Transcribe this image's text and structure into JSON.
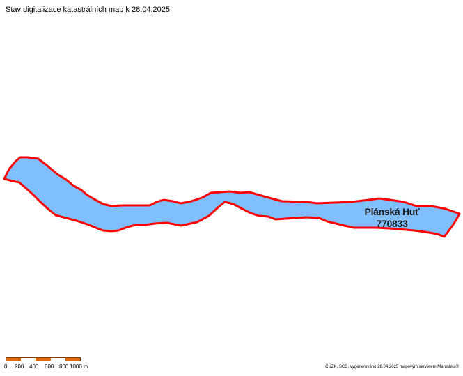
{
  "map": {
    "title": "Stav digitalizace katastrálních map k 28.04.2025",
    "parcel": {
      "name": "Plánská Huť",
      "code": "770833",
      "fill_color": "#80bfff",
      "stroke_color": "#ff0000"
    },
    "scale": {
      "colors": [
        "#e06a10",
        "#ffffff",
        "#e06a10",
        "#ffffff",
        "#e06a10"
      ],
      "labels": [
        "0",
        "200",
        "400",
        "600",
        "800",
        "1000 m"
      ]
    },
    "attribution": "ČÚZK, SCD, vygenerováno 28.04.2025 mapovým serverem Marushka®"
  }
}
